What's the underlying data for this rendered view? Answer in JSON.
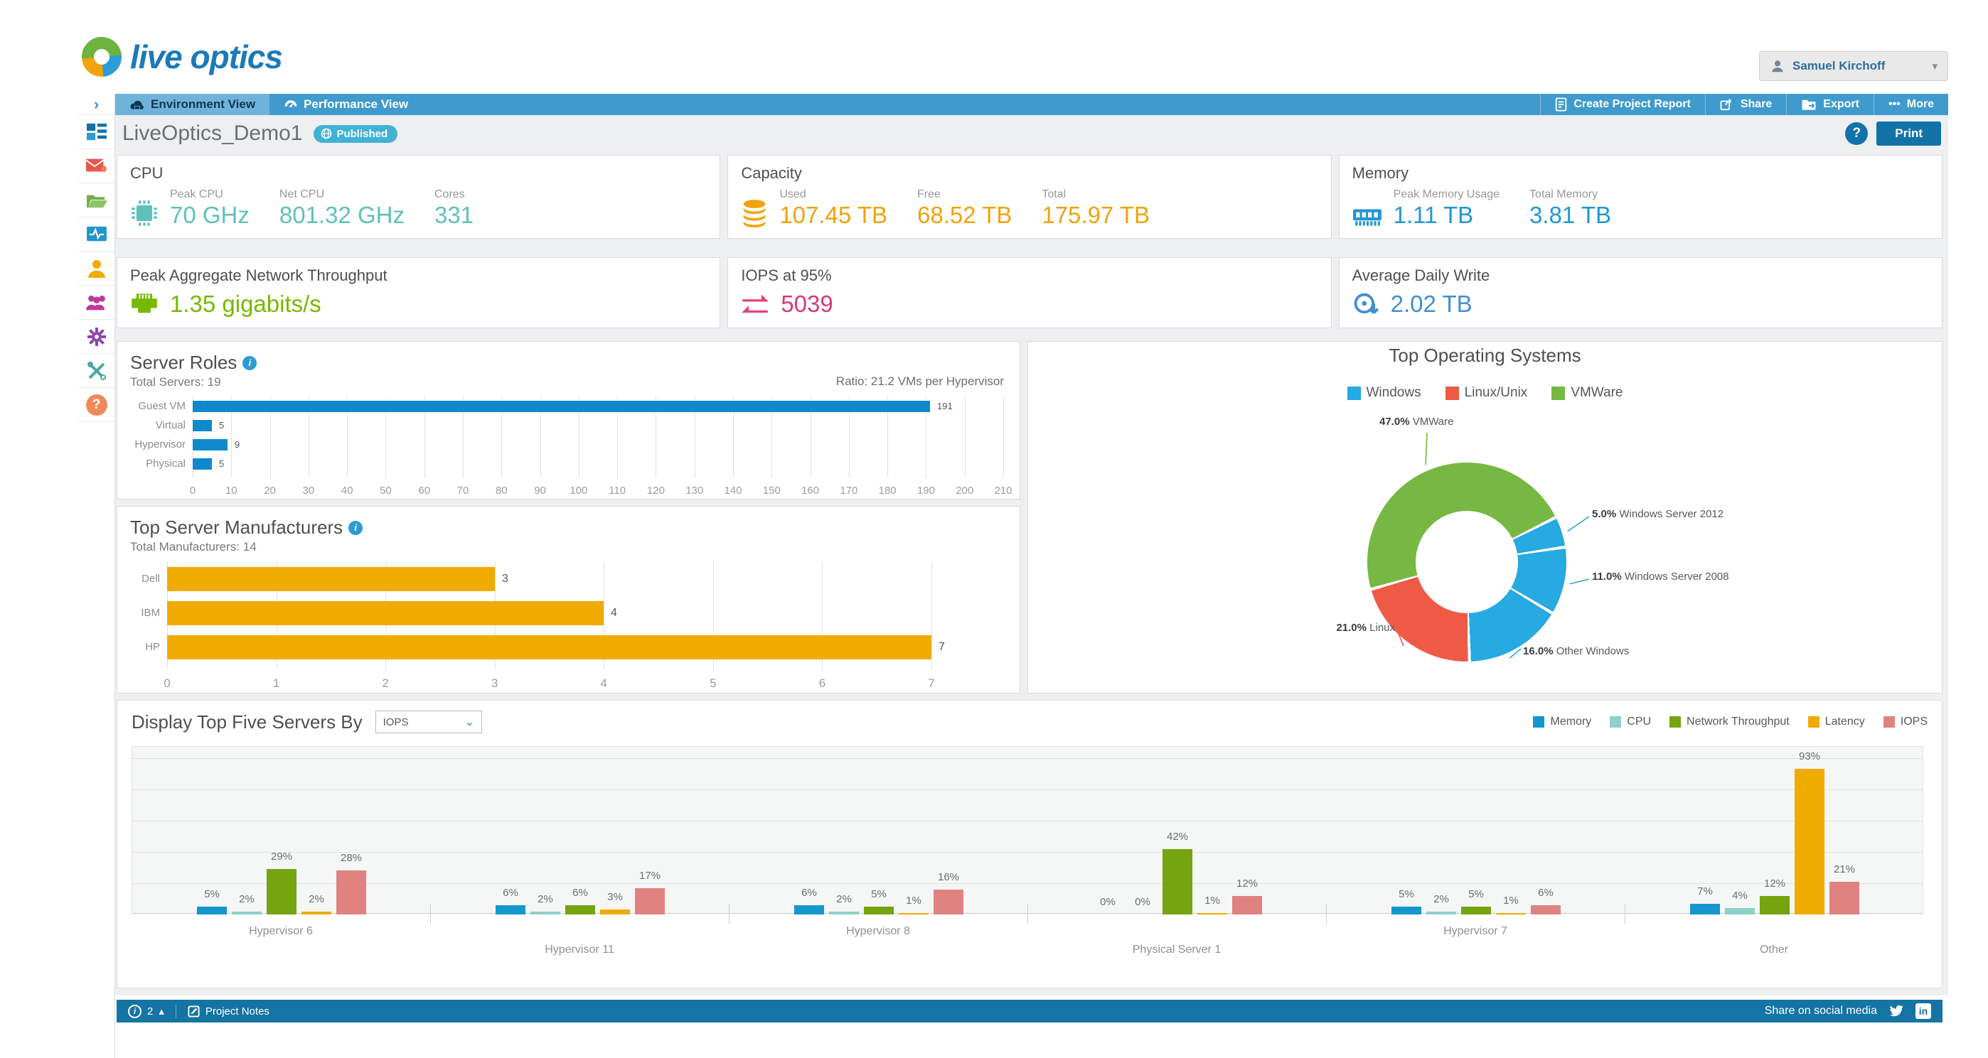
{
  "header": {
    "logo_text": "live optics",
    "user_name": "Samuel Kirchoff"
  },
  "nav": {
    "tabs": [
      {
        "label": "Environment View"
      },
      {
        "label": "Performance View"
      }
    ],
    "actions": [
      "Create Project Report",
      "Share",
      "Export",
      "More"
    ]
  },
  "page": {
    "title": "LiveOptics_Demo1",
    "badge": "Published",
    "help_label": "?",
    "print_label": "Print"
  },
  "cards": {
    "cpu": {
      "title": "CPU",
      "color": "#5ec1ba",
      "metrics": [
        {
          "label": "Peak CPU",
          "value": "70 GHz"
        },
        {
          "label": "Net CPU",
          "value": "801.32 GHz"
        },
        {
          "label": "Cores",
          "value": "331"
        }
      ]
    },
    "capacity": {
      "title": "Capacity",
      "color": "#f0a30a",
      "metrics": [
        {
          "label": "Used",
          "value": "107.45 TB"
        },
        {
          "label": "Free",
          "value": "68.52 TB"
        },
        {
          "label": "Total",
          "value": "175.97 TB"
        }
      ]
    },
    "memory": {
      "title": "Memory",
      "color": "#2196d4",
      "metrics": [
        {
          "label": "Peak Memory Usage",
          "value": "1.11 TB"
        },
        {
          "label": "Total Memory",
          "value": "3.81 TB"
        }
      ]
    },
    "network": {
      "title": "Peak Aggregate Network Throughput",
      "value": "1.35 gigabits/s",
      "color": "#76b900"
    },
    "iops": {
      "title": "IOPS at 95%",
      "value": "5039",
      "color": "#d8387f"
    },
    "write": {
      "title": "Average Daily Write",
      "value": "2.02 TB",
      "color": "#418fd0"
    }
  },
  "chart_data": [
    {
      "id": "server_roles",
      "type": "bar",
      "orientation": "horizontal",
      "title": "Server Roles",
      "subtitle": "Total Servers: 19",
      "annotation": "Ratio: 21.2 VMs per Hypervisor",
      "categories": [
        "Guest VM",
        "Virtual",
        "Hypervisor",
        "Physical"
      ],
      "values": [
        191,
        5,
        9,
        5
      ],
      "xlim": [
        0,
        210
      ],
      "xtick_step": 10,
      "bar_color": "#0f89cc",
      "grid": true
    },
    {
      "id": "manufacturers",
      "type": "bar",
      "orientation": "horizontal",
      "title": "Top Server Manufacturers",
      "subtitle": "Total Manufacturers: 14",
      "categories": [
        "Dell",
        "IBM",
        "HP"
      ],
      "values": [
        3,
        4,
        7
      ],
      "xlim": [
        0,
        7
      ],
      "xtick_step": 1,
      "bar_color": "#f0ab00",
      "grid": true
    },
    {
      "id": "top_os",
      "type": "pie",
      "donut": true,
      "title": "Top Operating Systems",
      "legend_position": "top",
      "legend": [
        {
          "label": "Windows",
          "color": "#27a9e1"
        },
        {
          "label": "Linux/Unix",
          "color": "#ee5a45"
        },
        {
          "label": "VMWare",
          "color": "#76b843"
        }
      ],
      "segments": [
        {
          "label": "VMWare",
          "pct": 47.0,
          "color": "#76b843"
        },
        {
          "label": "Windows Server 2012",
          "pct": 5.0,
          "color": "#27a9e1"
        },
        {
          "label": "Windows Server 2008",
          "pct": 11.0,
          "color": "#27a9e1"
        },
        {
          "label": "Other Windows",
          "pct": 16.0,
          "color": "#27a9e1"
        },
        {
          "label": "Linux",
          "pct": 21.0,
          "color": "#ee5a45"
        }
      ],
      "start_angle_deg": 255
    },
    {
      "id": "top5_servers",
      "type": "bar",
      "orientation": "vertical_grouped",
      "control_label": "Display Top Five Servers By",
      "selected_metric": "IOPS",
      "unit": "%",
      "ylim": [
        0,
        100
      ],
      "grid_step": 20,
      "legend_position": "top-right",
      "categories": [
        "Hypervisor 6",
        "Hypervisor 11",
        "Hypervisor 8",
        "Physical Server 1",
        "Hypervisor 7",
        "Other"
      ],
      "series": [
        {
          "name": "Memory",
          "color": "#1596cc",
          "values": [
            5,
            6,
            6,
            0,
            5,
            7
          ]
        },
        {
          "name": "CPU",
          "color": "#8fd0c9",
          "values": [
            2,
            2,
            2,
            0,
            2,
            4
          ]
        },
        {
          "name": "Network Throughput",
          "color": "#74a410",
          "values": [
            29,
            6,
            5,
            42,
            5,
            12
          ]
        },
        {
          "name": "Latency",
          "color": "#f0ab00",
          "values": [
            2,
            3,
            1,
            1,
            1,
            93
          ]
        },
        {
          "name": "IOPS",
          "color": "#e08380",
          "values": [
            28,
            17,
            16,
            12,
            6,
            21
          ]
        }
      ]
    }
  ],
  "sidebar": {
    "items": [
      {
        "icon": "dashboard-icon"
      },
      {
        "icon": "mail-forward-icon"
      },
      {
        "icon": "folder-icon"
      },
      {
        "icon": "activity-monitor-icon"
      },
      {
        "icon": "user-icon"
      },
      {
        "icon": "users-group-icon"
      },
      {
        "icon": "gear-icon"
      },
      {
        "icon": "tools-icon"
      },
      {
        "icon": "help-icon",
        "label": "?"
      }
    ]
  },
  "footer": {
    "count": "2",
    "notes_label": "Project Notes",
    "share_label": "Share on social media"
  }
}
